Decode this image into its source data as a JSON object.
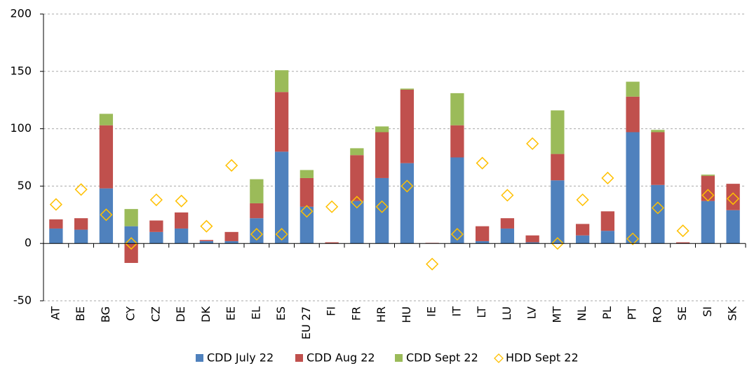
{
  "chart_data": {
    "type": "bar",
    "categories": [
      "AT",
      "BE",
      "BG",
      "CY",
      "CZ",
      "DE",
      "DK",
      "EE",
      "EL",
      "ES",
      "EU 27",
      "FI",
      "FR",
      "HR",
      "HU",
      "IE",
      "IT",
      "LT",
      "LU",
      "LV",
      "MT",
      "NL",
      "PL",
      "PT",
      "RO",
      "SE",
      "SI",
      "SK"
    ],
    "series": [
      {
        "name": "CDD July 22",
        "color": "#4f81bd",
        "values": [
          13,
          12,
          48,
          15,
          10,
          13,
          2,
          2,
          22,
          80,
          32,
          0,
          37,
          57,
          70,
          0,
          75,
          2,
          13,
          1,
          55,
          7,
          11,
          97,
          51,
          0,
          37,
          29
        ]
      },
      {
        "name": "CDD Aug 22",
        "color": "#c0504d",
        "values": [
          8,
          10,
          55,
          -17,
          10,
          14,
          1,
          8,
          13,
          52,
          25,
          1,
          40,
          40,
          64,
          0.5,
          28,
          13,
          9,
          6,
          23,
          10,
          17,
          31,
          46,
          1,
          22,
          23
        ]
      },
      {
        "name": "CDD Sept 22",
        "color": "#9bbb59",
        "values": [
          0,
          0,
          10,
          15,
          0,
          0,
          0,
          0,
          21,
          19,
          7,
          0,
          6,
          5,
          1,
          0,
          28,
          0,
          0,
          0,
          38,
          0,
          0,
          13,
          2,
          0,
          1,
          0
        ]
      },
      {
        "name": "HDD Sept 22",
        "color": "#ffc000",
        "marker": "diamond",
        "values": [
          34,
          47,
          25,
          0,
          38,
          37,
          15,
          68,
          8,
          8,
          28,
          32,
          36,
          32,
          50,
          -18,
          8,
          70,
          42,
          87,
          0,
          38,
          57,
          4,
          31,
          11,
          42,
          39
        ]
      }
    ],
    "ylim": [
      -50,
      200
    ],
    "yticks": [
      -50,
      0,
      50,
      100,
      150,
      200
    ],
    "grid": true,
    "legend": "bottom"
  }
}
